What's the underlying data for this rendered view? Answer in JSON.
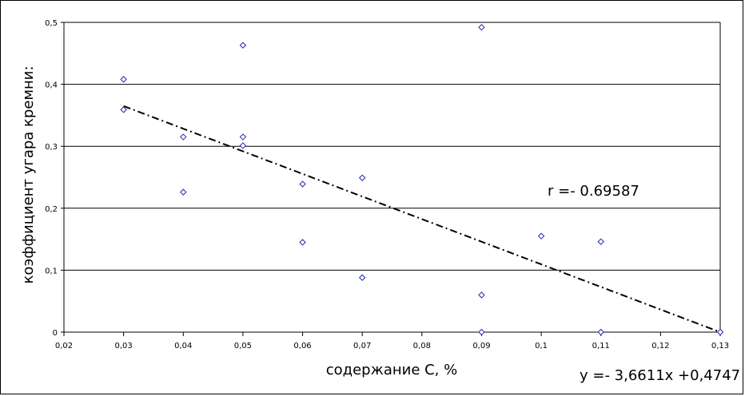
{
  "chart_data": {
    "type": "scatter",
    "xlabel": "содержание С, %",
    "ylabel": "коэффициент угара кремни:",
    "xlim": [
      0.02,
      0.13
    ],
    "ylim": [
      0,
      0.5
    ],
    "x_ticks": [
      0.02,
      0.03,
      0.04,
      0.05,
      0.06,
      0.07,
      0.08,
      0.09,
      0.1,
      0.11,
      0.12,
      0.13
    ],
    "x_tick_labels": [
      "0,02",
      "0,03",
      "0,04",
      "0,05",
      "0,06",
      "0,07",
      "0,08",
      "0,09",
      "0,1",
      "0,11",
      "0,12",
      "0,13"
    ],
    "y_ticks": [
      0,
      0.1,
      0.2,
      0.3,
      0.4,
      0.5
    ],
    "y_tick_labels": [
      "0",
      "0,1",
      "0,2",
      "0,3",
      "0,4",
      "0,5"
    ],
    "grid": "horizontal",
    "marker": "diamond",
    "marker_color": "#1f2aa8",
    "points": [
      {
        "x": 0.03,
        "y": 0.408
      },
      {
        "x": 0.03,
        "y": 0.359
      },
      {
        "x": 0.04,
        "y": 0.315
      },
      {
        "x": 0.04,
        "y": 0.226
      },
      {
        "x": 0.05,
        "y": 0.463
      },
      {
        "x": 0.05,
        "y": 0.315
      },
      {
        "x": 0.05,
        "y": 0.301
      },
      {
        "x": 0.06,
        "y": 0.239
      },
      {
        "x": 0.06,
        "y": 0.145
      },
      {
        "x": 0.07,
        "y": 0.249
      },
      {
        "x": 0.07,
        "y": 0.088
      },
      {
        "x": 0.09,
        "y": 0.492
      },
      {
        "x": 0.09,
        "y": 0.06
      },
      {
        "x": 0.09,
        "y": 0.0
      },
      {
        "x": 0.1,
        "y": 0.155
      },
      {
        "x": 0.11,
        "y": 0.146
      },
      {
        "x": 0.11,
        "y": 0.0
      },
      {
        "x": 0.13,
        "y": 0.0
      }
    ],
    "trendline": {
      "slope": -3.6611,
      "intercept": 0.4747,
      "x_range": [
        0.03,
        0.13
      ],
      "style": "dash-dot"
    },
    "annotations": {
      "r_label": "r =- 0.69587",
      "equation": "y =- 3,6611x +0,4747"
    }
  }
}
